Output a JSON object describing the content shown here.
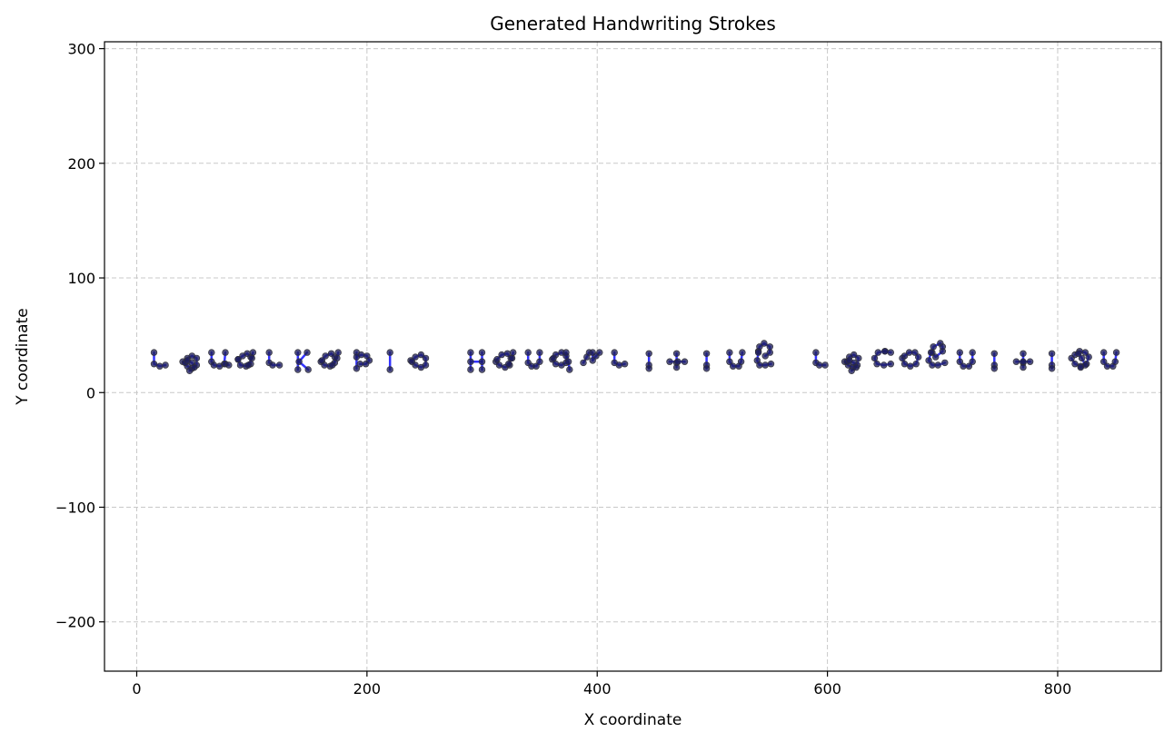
{
  "chart_data": {
    "type": "scatter",
    "title": "Generated Handwriting Strokes",
    "xlabel": "X coordinate",
    "ylabel": "Y coordinate",
    "xlim": [
      -28,
      890
    ],
    "ylim": [
      -243,
      306
    ],
    "xticks": [
      0,
      200,
      400,
      600,
      800
    ],
    "yticks": [
      -200,
      -100,
      0,
      100,
      200,
      300
    ],
    "xtick_labels": [
      "0",
      "200",
      "400",
      "600",
      "800"
    ],
    "ytick_labels": [
      "−200",
      "−100",
      "0",
      "100",
      "200",
      "300"
    ],
    "grid": true,
    "colors": {
      "stroke": "#0000ff",
      "point": "#1f1f5a",
      "grid": "#c8c8c8"
    },
    "strokes": [
      [
        [
          15,
          35
        ],
        [
          15,
          25
        ],
        [
          20,
          23
        ],
        [
          25,
          24
        ]
      ],
      [
        [
          40,
          27
        ],
        [
          44,
          23
        ],
        [
          48,
          21
        ],
        [
          52,
          24
        ],
        [
          52,
          30
        ],
        [
          48,
          32
        ],
        [
          44,
          30
        ],
        [
          42,
          26
        ]
      ],
      [
        [
          44,
          28
        ],
        [
          48,
          26
        ],
        [
          50,
          22
        ],
        [
          46,
          19
        ]
      ],
      [
        [
          65,
          35
        ],
        [
          65,
          27
        ],
        [
          67,
          24
        ],
        [
          72,
          23
        ],
        [
          76,
          25
        ],
        [
          77,
          35
        ]
      ],
      [
        [
          77,
          25
        ],
        [
          80,
          24
        ]
      ],
      [
        [
          88,
          29
        ],
        [
          90,
          24
        ],
        [
          95,
          23
        ],
        [
          99,
          25
        ],
        [
          99,
          31
        ],
        [
          96,
          34
        ],
        [
          92,
          32
        ],
        [
          88,
          29
        ]
      ],
      [
        [
          97,
          24
        ],
        [
          100,
          30
        ],
        [
          101,
          35
        ]
      ],
      [
        [
          115,
          35
        ],
        [
          115,
          26
        ],
        [
          118,
          24
        ],
        [
          124,
          24
        ]
      ],
      [
        [
          140,
          35
        ],
        [
          140,
          20
        ]
      ],
      [
        [
          148,
          35
        ],
        [
          141,
          27
        ],
        [
          149,
          20
        ]
      ],
      [
        [
          160,
          27
        ],
        [
          163,
          24
        ],
        [
          168,
          23
        ],
        [
          172,
          26
        ],
        [
          172,
          31
        ],
        [
          169,
          34
        ],
        [
          164,
          32
        ],
        [
          161,
          28
        ]
      ],
      [
        [
          170,
          24
        ],
        [
          174,
          30
        ],
        [
          175,
          35
        ]
      ],
      [
        [
          191,
          35
        ],
        [
          191,
          21
        ]
      ],
      [
        [
          191,
          31
        ],
        [
          195,
          33
        ],
        [
          200,
          32
        ],
        [
          202,
          28
        ],
        [
          199,
          25
        ],
        [
          194,
          25
        ]
      ],
      [
        [
          220,
          35
        ],
        [
          220,
          20
        ]
      ],
      [
        [
          238,
          28
        ],
        [
          242,
          24
        ],
        [
          247,
          22
        ],
        [
          251,
          24
        ],
        [
          251,
          30
        ],
        [
          247,
          33
        ],
        [
          242,
          31
        ],
        [
          239,
          27
        ]
      ],
      [
        [
          290,
          35
        ],
        [
          290,
          20
        ]
      ],
      [
        [
          300,
          35
        ],
        [
          300,
          20
        ]
      ],
      [
        [
          290,
          27
        ],
        [
          300,
          27
        ]
      ],
      [
        [
          312,
          27
        ],
        [
          315,
          24
        ],
        [
          320,
          22
        ],
        [
          324,
          24
        ],
        [
          325,
          30
        ],
        [
          322,
          34
        ],
        [
          317,
          33
        ],
        [
          313,
          29
        ]
      ],
      [
        [
          323,
          25
        ],
        [
          326,
          30
        ],
        [
          327,
          35
        ]
      ],
      [
        [
          340,
          35
        ],
        [
          340,
          26
        ],
        [
          343,
          23
        ],
        [
          347,
          23
        ],
        [
          350,
          27
        ],
        [
          350,
          35
        ]
      ],
      [
        [
          361,
          29
        ],
        [
          364,
          25
        ],
        [
          369,
          24
        ],
        [
          373,
          26
        ],
        [
          373,
          32
        ],
        [
          369,
          35
        ],
        [
          364,
          33
        ],
        [
          362,
          30
        ]
      ],
      [
        [
          373,
          35
        ],
        [
          375,
          27
        ],
        [
          376,
          20
        ]
      ],
      [
        [
          388,
          26
        ],
        [
          391,
          31
        ],
        [
          393,
          35
        ]
      ],
      [
        [
          396,
          35
        ],
        [
          396,
          28
        ],
        [
          399,
          32
        ],
        [
          402,
          35
        ]
      ],
      [
        [
          415,
          35
        ],
        [
          415,
          26
        ],
        [
          419,
          24
        ],
        [
          424,
          25
        ]
      ],
      [
        [
          445,
          34
        ],
        [
          445,
          24
        ],
        [
          445,
          21
        ]
      ],
      [
        [
          469,
          34
        ],
        [
          469,
          26
        ],
        [
          469,
          22
        ]
      ],
      [
        [
          463,
          27
        ],
        [
          470,
          27
        ],
        [
          476,
          27
        ]
      ],
      [
        [
          495,
          34
        ],
        [
          495,
          24
        ],
        [
          495,
          21
        ]
      ],
      [
        [
          515,
          35
        ],
        [
          515,
          27
        ],
        [
          518,
          23
        ],
        [
          523,
          23
        ],
        [
          525,
          27
        ],
        [
          526,
          35
        ]
      ],
      [
        [
          540,
          36
        ],
        [
          541,
          40
        ],
        [
          545,
          43
        ],
        [
          550,
          40
        ],
        [
          550,
          35
        ],
        [
          546,
          32
        ]
      ],
      [
        [
          540,
          35
        ],
        [
          539,
          28
        ],
        [
          541,
          24
        ],
        [
          546,
          24
        ],
        [
          551,
          25
        ]
      ],
      [
        [
          590,
          35
        ],
        [
          590,
          26
        ],
        [
          593,
          24
        ],
        [
          598,
          24
        ]
      ],
      [
        [
          615,
          27
        ],
        [
          618,
          24
        ],
        [
          622,
          22
        ],
        [
          626,
          24
        ],
        [
          627,
          30
        ],
        [
          623,
          33
        ],
        [
          619,
          31
        ],
        [
          617,
          27
        ]
      ],
      [
        [
          619,
          28
        ],
        [
          623,
          26
        ],
        [
          625,
          22
        ],
        [
          621,
          19
        ]
      ],
      [
        [
          650,
          36
        ],
        [
          644,
          35
        ],
        [
          641,
          30
        ],
        [
          643,
          25
        ],
        [
          649,
          24
        ],
        [
          655,
          25
        ]
      ],
      [
        [
          650,
          36
        ],
        [
          655,
          35
        ]
      ],
      [
        [
          665,
          30
        ],
        [
          667,
          25
        ],
        [
          672,
          23
        ],
        [
          677,
          25
        ],
        [
          679,
          31
        ],
        [
          676,
          35
        ],
        [
          671,
          35
        ],
        [
          667,
          32
        ]
      ],
      [
        [
          698,
          43
        ],
        [
          692,
          40
        ],
        [
          691,
          35
        ],
        [
          694,
          31
        ],
        [
          700,
          36
        ],
        [
          700,
          40
        ]
      ],
      [
        [
          690,
          35
        ],
        [
          688,
          28
        ],
        [
          691,
          24
        ],
        [
          696,
          24
        ],
        [
          702,
          26
        ]
      ],
      [
        [
          715,
          35
        ],
        [
          715,
          27
        ],
        [
          718,
          23
        ],
        [
          723,
          23
        ],
        [
          726,
          27
        ],
        [
          726,
          35
        ]
      ],
      [
        [
          745,
          34
        ],
        [
          745,
          24
        ],
        [
          745,
          21
        ]
      ],
      [
        [
          770,
          34
        ],
        [
          770,
          26
        ],
        [
          770,
          22
        ]
      ],
      [
        [
          764,
          27
        ],
        [
          770,
          27
        ],
        [
          776,
          27
        ]
      ],
      [
        [
          795,
          34
        ],
        [
          795,
          24
        ],
        [
          795,
          21
        ]
      ],
      [
        [
          812,
          30
        ],
        [
          815,
          25
        ],
        [
          820,
          23
        ],
        [
          825,
          25
        ],
        [
          827,
          31
        ],
        [
          824,
          35
        ],
        [
          819,
          36
        ],
        [
          815,
          33
        ]
      ],
      [
        [
          818,
          34
        ],
        [
          821,
          30
        ],
        [
          824,
          24
        ],
        [
          820,
          22
        ]
      ],
      [
        [
          840,
          35
        ],
        [
          840,
          27
        ],
        [
          843,
          23
        ],
        [
          848,
          23
        ],
        [
          850,
          27
        ],
        [
          851,
          35
        ]
      ]
    ]
  }
}
